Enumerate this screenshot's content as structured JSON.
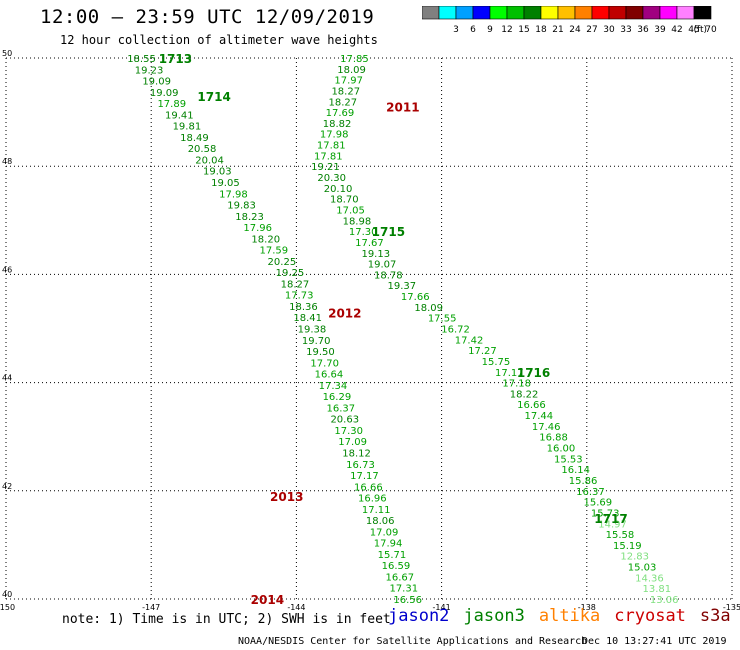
{
  "header": {
    "title": "12:00 – 23:59 UTC 12/09/2019",
    "subtitle": "12 hour collection of altimeter wave heights"
  },
  "colorbar": {
    "unit": "(ft)",
    "items": [
      {
        "label": "",
        "color": "#808080"
      },
      {
        "label": "3",
        "color": "#00ffff"
      },
      {
        "label": "6",
        "color": "#00a0ff"
      },
      {
        "label": "9",
        "color": "#0000ff"
      },
      {
        "label": "12",
        "color": "#00ff00"
      },
      {
        "label": "15",
        "color": "#00c000"
      },
      {
        "label": "18",
        "color": "#008000"
      },
      {
        "label": "21",
        "color": "#ffff00"
      },
      {
        "label": "24",
        "color": "#ffc000"
      },
      {
        "label": "27",
        "color": "#ff8000"
      },
      {
        "label": "30",
        "color": "#ff0000"
      },
      {
        "label": "33",
        "color": "#c00000"
      },
      {
        "label": "36",
        "color": "#800000"
      },
      {
        "label": "39",
        "color": "#a00080"
      },
      {
        "label": "42",
        "color": "#ff00ff"
      },
      {
        "label": "45",
        "color": "#ff80ff"
      },
      {
        "label": "70",
        "color": "#000000"
      }
    ]
  },
  "footer": {
    "note": "note: 1) Time is in UTC; 2) SWH is in feet",
    "legend": [
      {
        "name": "jason2",
        "color": "#0000cc"
      },
      {
        "name": "jason3",
        "color": "#008000"
      },
      {
        "name": "altika",
        "color": "#ff8000"
      },
      {
        "name": "cryosat",
        "color": "#cc0000"
      },
      {
        "name": "s3a",
        "color": "#800000"
      }
    ],
    "credit": "NOAA/NESDIS Center for Satellite Applications and Research",
    "timestamp": "Dec 10 13:27:41 UTC 2019"
  },
  "colors": {
    "dark_green": "#008000",
    "mid_green": "#00a000",
    "light_green": "#80e080",
    "time_green": "#008000",
    "time_red": "#aa0000"
  },
  "chart_data": {
    "type": "scatter",
    "xlabel": "",
    "ylabel": "",
    "xlim": [
      -150,
      -135
    ],
    "ylim": [
      40,
      50
    ],
    "x_ticks": [
      "-150",
      "-147",
      "-144",
      "-141",
      "-138",
      "-135"
    ],
    "y_ticks": [
      "40",
      "42",
      "44",
      "46",
      "48",
      "50"
    ],
    "grid": true,
    "tracks": [
      {
        "values": [
          "18.55",
          "19.23",
          "19.09",
          "19.09",
          "17.89",
          "19.41",
          "19.81",
          "18.49",
          "20.58",
          "20.04",
          "19.03",
          "19.05",
          "17.98",
          "19.83",
          "18.23",
          "17.96",
          "18.20",
          "17.59",
          "20.25",
          "19.25",
          "18.27",
          "17.73",
          "18.36",
          "18.41",
          "19.38",
          "19.70",
          "19.50",
          "17.70",
          "16.64",
          "17.34",
          "16.29",
          "16.37",
          "20.63",
          "17.30",
          "17.09",
          "18.12",
          "16.73",
          "17.17",
          "16.66",
          "16.96",
          "17.11",
          "18.06",
          "17.09",
          "17.94",
          "15.71",
          "16.59",
          "16.67",
          "17.31",
          "16.56"
        ],
        "lon": [
          -147.2,
          -145.7,
          -144.1,
          -143.3,
          -141.7
        ],
        "lat": [
          50,
          48,
          46.0,
          44.1,
          40
        ],
        "times": [
          {
            "label": "1713",
            "lat": 50.0,
            "lon": -146.5
          },
          {
            "label": "1714",
            "lat": 49.3,
            "lon": -145.7
          },
          {
            "label": "2012",
            "lat": 45.3,
            "lon": -143.0
          },
          {
            "label": "2013",
            "lat": 41.9,
            "lon": -144.2
          },
          {
            "label": "2014",
            "lat": 40.0,
            "lon": -144.6
          }
        ]
      },
      {
        "values": [
          "17.85",
          "18.09",
          "17.97",
          "18.27",
          "18.27",
          "17.69",
          "18.82",
          "17.98",
          "17.81",
          "17.81",
          "19.21",
          "20.30",
          "20.10",
          "18.70",
          "17.05",
          "18.98",
          "17.30",
          "17.67",
          "19.13",
          "19.07",
          "18.78",
          "19.37",
          "17.66",
          "18.09",
          "17.55",
          "16.72",
          "17.42",
          "17.27",
          "15.75",
          "17.17",
          "17.18",
          "18.22",
          "16.66",
          "17.44",
          "17.46",
          "16.88",
          "16.00",
          "15.53",
          "16.14",
          "15.86",
          "16.37",
          "15.69",
          "15.73",
          "14.97",
          "15.58",
          "15.19",
          "12.83",
          "15.03",
          "14.36",
          "13.81",
          "13.06"
        ],
        "lon": [
          -142.8,
          -143.4,
          -142.1,
          -139.6,
          -136.4
        ],
        "lat": [
          50,
          48,
          46.0,
          44.2,
          40
        ],
        "times": [
          {
            "label": "2011",
            "lat": 49.1,
            "lon": -141.8
          },
          {
            "label": "1715",
            "lat": 46.8,
            "lon": -142.1
          },
          {
            "label": "1716",
            "lat": 44.2,
            "lon": -139.1
          },
          {
            "label": "1717",
            "lat": 41.5,
            "lon": -137.5
          }
        ]
      }
    ]
  }
}
